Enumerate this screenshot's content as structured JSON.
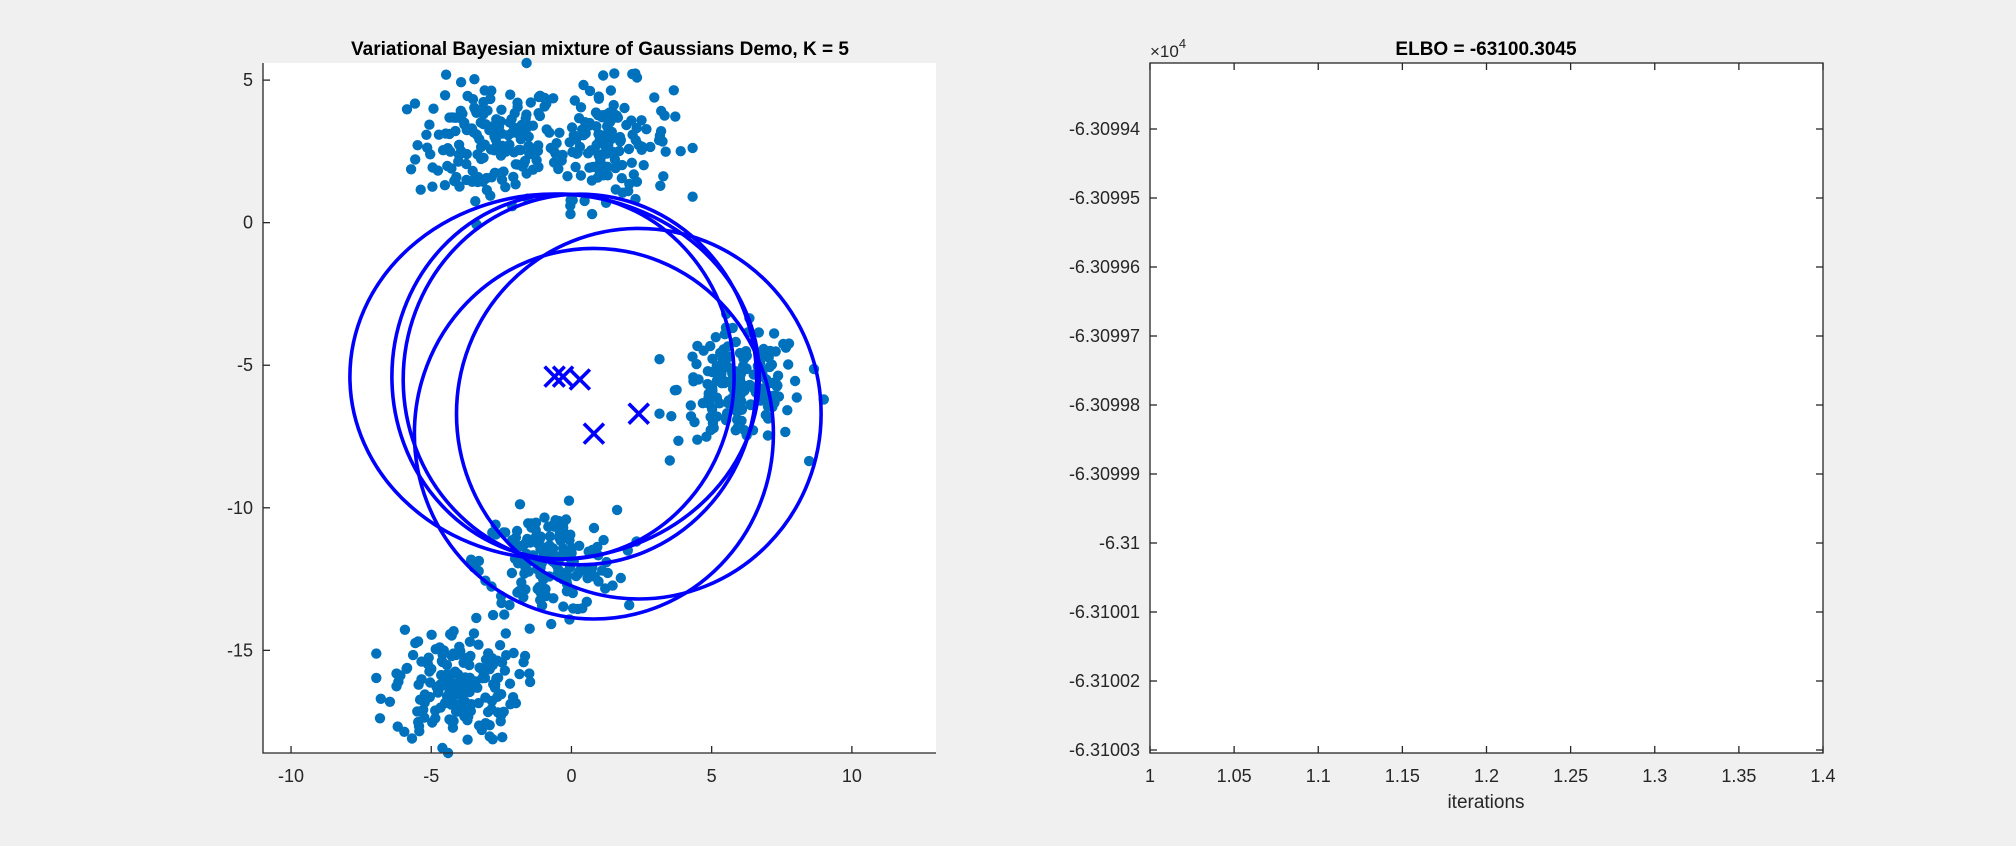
{
  "chart_data": [
    {
      "type": "scatter",
      "title": "Variational Bayesian mixture of Gaussians Demo, K = 5",
      "xlabel": "",
      "ylabel": "",
      "xlim": [
        -11,
        13
      ],
      "ylim": [
        -18.6,
        5.6
      ],
      "xticks": [
        -10,
        -5,
        0,
        5,
        10
      ],
      "yticks": [
        5,
        0,
        -5,
        -10,
        -15
      ],
      "grid": false,
      "colors": {
        "points": "#0072BD",
        "components": "#0000FF",
        "axes": "#262626"
      },
      "clusters": [
        {
          "center": [
            -3.0,
            2.8
          ],
          "spread": [
            1.25,
            1.1
          ],
          "n": 160
        },
        {
          "center": [
            1.2,
            2.9
          ],
          "spread": [
            1.2,
            1.0
          ],
          "n": 150
        },
        {
          "center": [
            6.0,
            -5.8
          ],
          "spread": [
            1.1,
            1.0
          ],
          "n": 170
        },
        {
          "center": [
            -0.8,
            -11.9
          ],
          "spread": [
            1.2,
            0.9
          ],
          "n": 170
        },
        {
          "center": [
            -4.1,
            -16.2
          ],
          "spread": [
            1.1,
            1.0
          ],
          "n": 180
        }
      ],
      "extra_points": [
        [
          -1.6,
          5.6
        ],
        [
          -4.4,
          -18.6
        ],
        [
          9.0,
          -6.2
        ],
        [
          -6.8,
          -16.7
        ]
      ],
      "components": [
        {
          "mean": [
            -0.6,
            -5.4
          ],
          "rx": 7.3,
          "ry": 6.4
        },
        {
          "mean": [
            -0.3,
            -5.4
          ],
          "rx": 6.1,
          "ry": 6.4
        },
        {
          "mean": [
            0.3,
            -5.5
          ],
          "rx": 6.3,
          "ry": 6.5
        },
        {
          "mean": [
            0.8,
            -7.4
          ],
          "rx": 6.4,
          "ry": 6.5
        },
        {
          "mean": [
            2.4,
            -6.7
          ],
          "rx": 6.5,
          "ry": 6.5
        }
      ]
    },
    {
      "type": "line",
      "title": "ELBO = -63100.3045",
      "xlabel": "iterations",
      "ylabel": "",
      "xlim": [
        1,
        1.4
      ],
      "ylim": [
        -6.31003,
        -6.30993
      ],
      "xticks": [
        "1",
        "1.05",
        "1.1",
        "1.15",
        "1.2",
        "1.25",
        "1.3",
        "1.35",
        "1.4"
      ],
      "yticks": [
        "-6.30994",
        "-6.30995",
        "-6.30996",
        "-6.30997",
        "-6.30998",
        "-6.30999",
        "-6.31",
        "-6.31001",
        "-6.31002",
        "-6.31003"
      ],
      "exponent_label": {
        "base": "×10",
        "power": "4"
      },
      "series": [
        {
          "x": [
            1
          ],
          "y": [
            -6.3100304
          ]
        }
      ],
      "grid": false
    }
  ]
}
